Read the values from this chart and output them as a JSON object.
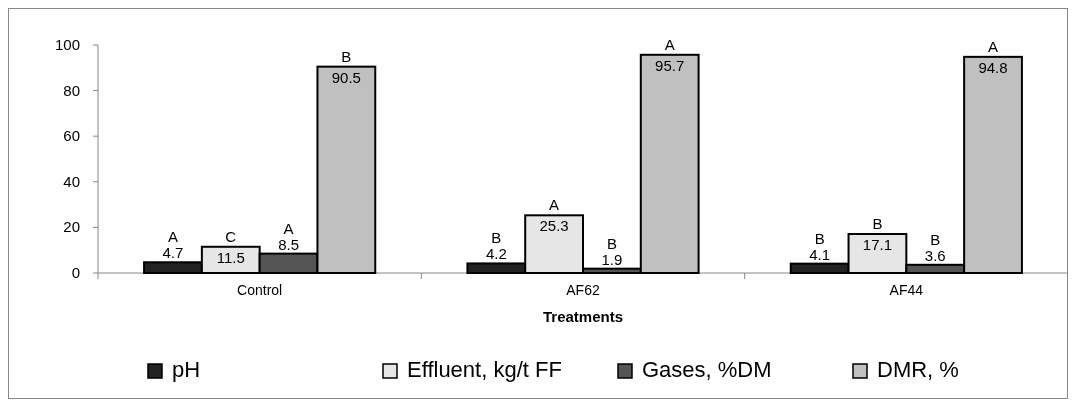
{
  "chart_data": {
    "type": "bar",
    "xlabel": "Treatments",
    "categories": [
      "Control",
      "AF62",
      "AF44"
    ],
    "series": [
      {
        "name": "pH",
        "color": "#222222",
        "values": [
          4.7,
          4.2,
          4.1
        ]
      },
      {
        "name": "Effluent, kg/t FF",
        "color": "#e6e6e6",
        "values": [
          11.5,
          25.3,
          17.1
        ]
      },
      {
        "name": "Gases, %DM",
        "color": "#555555",
        "values": [
          8.5,
          1.9,
          3.6
        ]
      },
      {
        "name": "DMR, %",
        "color": "#c0c0c0",
        "values": [
          90.5,
          95.7,
          94.8
        ]
      }
    ],
    "ylim": [
      0,
      100
    ],
    "yticks": [
      0,
      20,
      40,
      60,
      80,
      100
    ],
    "data_labels": true,
    "legend": "bottom",
    "annotations": [
      "A",
      "C",
      "A",
      "B",
      "B",
      "A",
      "B",
      "A",
      "B",
      "B",
      "B",
      "A"
    ]
  }
}
